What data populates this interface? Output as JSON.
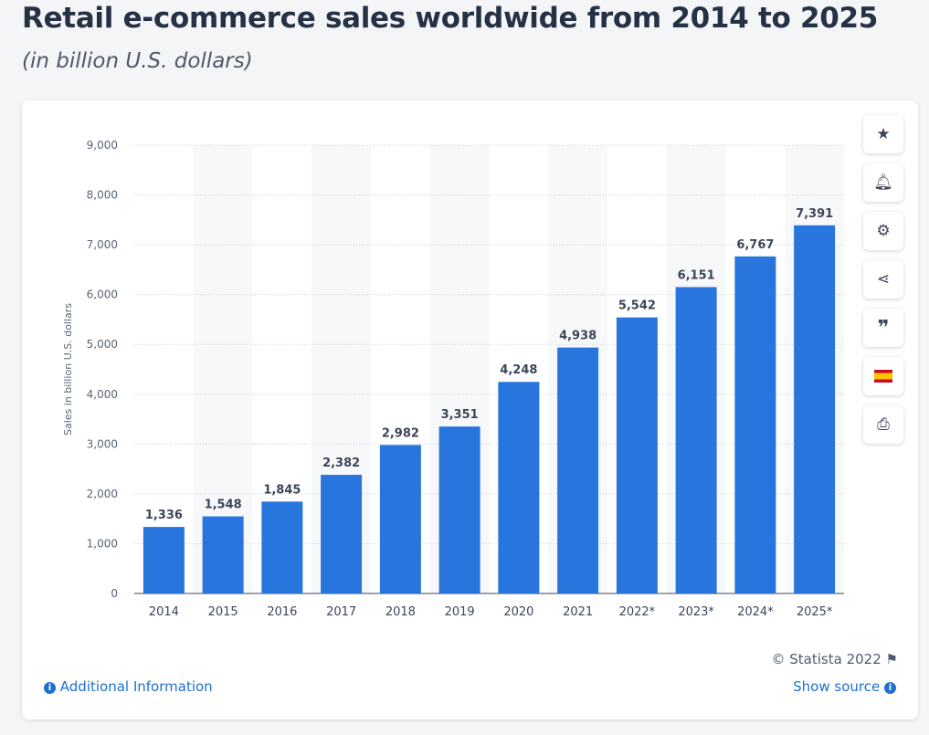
{
  "header": {
    "title": "Retail e-commerce sales worldwide from 2014 to 2025",
    "subtitle": "(in billion U.S. dollars)"
  },
  "toolbar": [
    "star-icon",
    "bell-icon",
    "gear-icon",
    "share-icon",
    "quote-icon",
    "spain-flag-icon",
    "print-icon"
  ],
  "footer": {
    "credit": "© Statista 2022",
    "additional_info": "Additional Information",
    "show_source": "Show source"
  },
  "chart_data": {
    "type": "bar",
    "categories": [
      "2014",
      "2015",
      "2016",
      "2017",
      "2018",
      "2019",
      "2020",
      "2021",
      "2022*",
      "2023*",
      "2024*",
      "2025*"
    ],
    "values": [
      1336,
      1548,
      1845,
      2382,
      2982,
      3351,
      4248,
      4938,
      5542,
      6151,
      6767,
      7391
    ],
    "value_labels": [
      "1,336",
      "1,548",
      "1,845",
      "2,382",
      "2,982",
      "3,351",
      "4,248",
      "4,938",
      "5,542",
      "6,151",
      "6,767",
      "7,391"
    ],
    "ylabel": "Sales in billion U.S. dollars",
    "ylim": [
      0,
      9000
    ],
    "yticks": [
      "0",
      "1,000",
      "2,000",
      "3,000",
      "4,000",
      "5,000",
      "6,000",
      "7,000",
      "8,000",
      "9,000"
    ],
    "grid": true,
    "bar_color": "#2876dd"
  }
}
